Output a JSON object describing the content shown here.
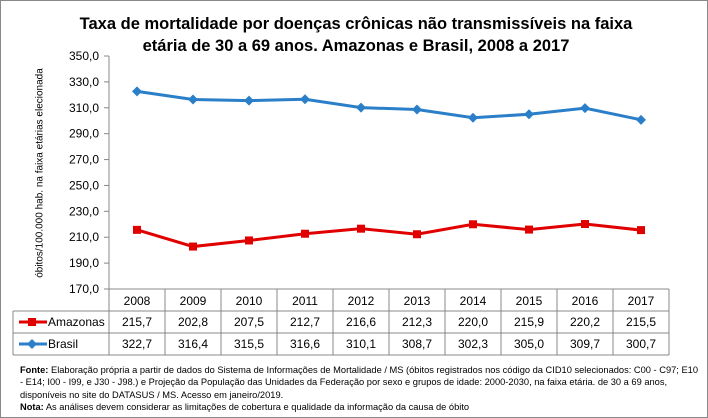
{
  "chart_data": {
    "type": "line",
    "title": "Taxa de mortalidade por doenças crônicas não transmissíveis na faixa etária de 30 a  69 anos. Amazonas e Brasil, 2008 a 2017",
    "ylabel": "óbitos/100.000 hab. na faixa etárias elecionada",
    "ylim": [
      170,
      350
    ],
    "yticks": [
      "170,0",
      "190,0",
      "210,0",
      "230,0",
      "250,0",
      "270,0",
      "290,0",
      "310,0",
      "330,0",
      "350,0"
    ],
    "categories": [
      "2008",
      "2009",
      "2010",
      "2011",
      "2012",
      "2013",
      "2014",
      "2015",
      "2016",
      "2017"
    ],
    "series": [
      {
        "name": "Amazonas",
        "color": "#e00000",
        "marker": "square",
        "values": [
          215.7,
          202.8,
          207.5,
          212.7,
          216.6,
          212.3,
          220.0,
          215.9,
          220.2,
          215.5
        ],
        "labels": [
          "215,7",
          "202,8",
          "207,5",
          "212,7",
          "216,6",
          "212,3",
          "220,0",
          "215,9",
          "220,2",
          "215,5"
        ]
      },
      {
        "name": "Brasil",
        "color": "#2a7fc8",
        "marker": "diamond",
        "values": [
          322.7,
          316.4,
          315.5,
          316.6,
          310.1,
          308.7,
          302.3,
          305.0,
          309.7,
          300.7
        ],
        "labels": [
          "322,7",
          "316,4",
          "315,5",
          "316,6",
          "310,1",
          "308,7",
          "302,3",
          "305,0",
          "309,7",
          "300,7"
        ]
      }
    ],
    "grid": false,
    "data_table": true
  },
  "notes": {
    "fonte_label": "Fonte:",
    "fonte_text": " Elaboração própria a partir de dados do Sistema de Informações de Mortalidade / MS (óbitos registrados nos código da CID10 selecionados: C00 - C97; E10 - E14; I00 - I99, e J30 - J98.) e Projeção da População das Unidades da Federação por sexo e grupos de idade: 2000-2030, na faixa etária. de 30 a 69 anos, disponíveis no site do DATASUS / MS.  Acesso em janeiro/2019.",
    "nota_label": "Nota:",
    "nota_text": "  As análises devem considerar as limitações de cobertura e qualidade da informação da causa de óbito"
  }
}
